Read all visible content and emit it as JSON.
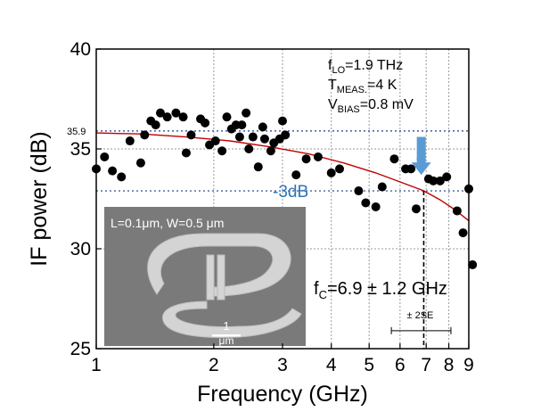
{
  "chart_data": {
    "type": "scatter",
    "xscale": "log",
    "xlabel": "Frequency (GHz)",
    "ylabel": "IF power (dB)",
    "xlim": [
      1,
      9
    ],
    "ylim": [
      25,
      40
    ],
    "xticks": [
      1,
      2,
      3,
      4,
      5,
      6,
      7,
      8,
      9
    ],
    "yticks": [
      25,
      30,
      35,
      40
    ],
    "grid": true,
    "points": [
      [
        1.0,
        34.0
      ],
      [
        1.05,
        34.6
      ],
      [
        1.1,
        33.9
      ],
      [
        1.16,
        33.6
      ],
      [
        1.22,
        35.4
      ],
      [
        1.3,
        34.3
      ],
      [
        1.33,
        35.7
      ],
      [
        1.38,
        36.4
      ],
      [
        1.42,
        36.2
      ],
      [
        1.46,
        36.8
      ],
      [
        1.52,
        36.6
      ],
      [
        1.6,
        36.8
      ],
      [
        1.67,
        36.6
      ],
      [
        1.7,
        34.8
      ],
      [
        1.75,
        35.7
      ],
      [
        1.85,
        36.5
      ],
      [
        1.9,
        36.3
      ],
      [
        1.95,
        35.2
      ],
      [
        2.02,
        35.4
      ],
      [
        2.1,
        34.9
      ],
      [
        2.16,
        36.6
      ],
      [
        2.22,
        36.0
      ],
      [
        2.28,
        36.2
      ],
      [
        2.33,
        35.6
      ],
      [
        2.36,
        36.2
      ],
      [
        2.42,
        36.8
      ],
      [
        2.46,
        35.0
      ],
      [
        2.52,
        35.6
      ],
      [
        2.6,
        34.1
      ],
      [
        2.67,
        36.1
      ],
      [
        2.7,
        35.5
      ],
      [
        2.8,
        34.9
      ],
      [
        2.85,
        35.3
      ],
      [
        2.95,
        35.5
      ],
      [
        3.0,
        36.4
      ],
      [
        3.05,
        35.7
      ],
      [
        3.25,
        33.7
      ],
      [
        3.45,
        34.5
      ],
      [
        3.7,
        34.6
      ],
      [
        4.0,
        33.8
      ],
      [
        4.2,
        34.0
      ],
      [
        4.7,
        32.9
      ],
      [
        4.9,
        32.3
      ],
      [
        5.2,
        32.1
      ],
      [
        5.4,
        33.1
      ],
      [
        5.8,
        34.5
      ],
      [
        6.2,
        34.0
      ],
      [
        6.4,
        34.0
      ],
      [
        6.6,
        32.0
      ],
      [
        6.8,
        34.5
      ],
      [
        7.1,
        33.5
      ],
      [
        7.3,
        33.4
      ],
      [
        7.6,
        33.4
      ],
      [
        7.9,
        33.6
      ],
      [
        8.4,
        31.9
      ],
      [
        8.7,
        30.8
      ],
      [
        9.0,
        33.0
      ],
      [
        9.2,
        29.2
      ]
    ],
    "fit_curve": {
      "color": "#c00000",
      "x": [
        1.0,
        1.3,
        1.7,
        2.2,
        2.8,
        3.5,
        4.3,
        5.2,
        6.0,
        6.9,
        7.6,
        8.3,
        9.0
      ],
      "y": [
        35.8,
        35.75,
        35.6,
        35.4,
        35.1,
        34.75,
        34.3,
        33.8,
        33.35,
        32.9,
        32.45,
        31.95,
        31.4
      ]
    },
    "ref_lines": [
      {
        "y": 35.9,
        "label": "35.9",
        "style": "dotted",
        "color": "#1f3a8a"
      },
      {
        "y": 32.9,
        "label": "-3dB",
        "style": "dotted",
        "color": "#1f3a8a"
      }
    ],
    "cutoff": {
      "x": 6.9,
      "y_top": 32.9,
      "label_prefix": "f",
      "label_sub": "C",
      "label_value": "=6.9 ± 1.2 GHz",
      "se_label": "± 2SE",
      "se_range": [
        5.7,
        8.1
      ],
      "se_y": 25.9
    },
    "arrow": {
      "x": 6.8,
      "y_top": 35.6,
      "y_bottom": 33.7,
      "color": "#5b9bd5"
    },
    "params": [
      {
        "main": "f",
        "sub": "LO",
        "rest": "=1.9 THz"
      },
      {
        "main": "T",
        "sub": "MEAS.",
        "rest": "=4 K"
      },
      {
        "main": "V",
        "sub": "BIAS",
        "rest": "=0.8 mV"
      }
    ]
  },
  "inset": {
    "caption": "L=0.1μm, W=0.5 μm",
    "scalebar": "1 μm"
  }
}
